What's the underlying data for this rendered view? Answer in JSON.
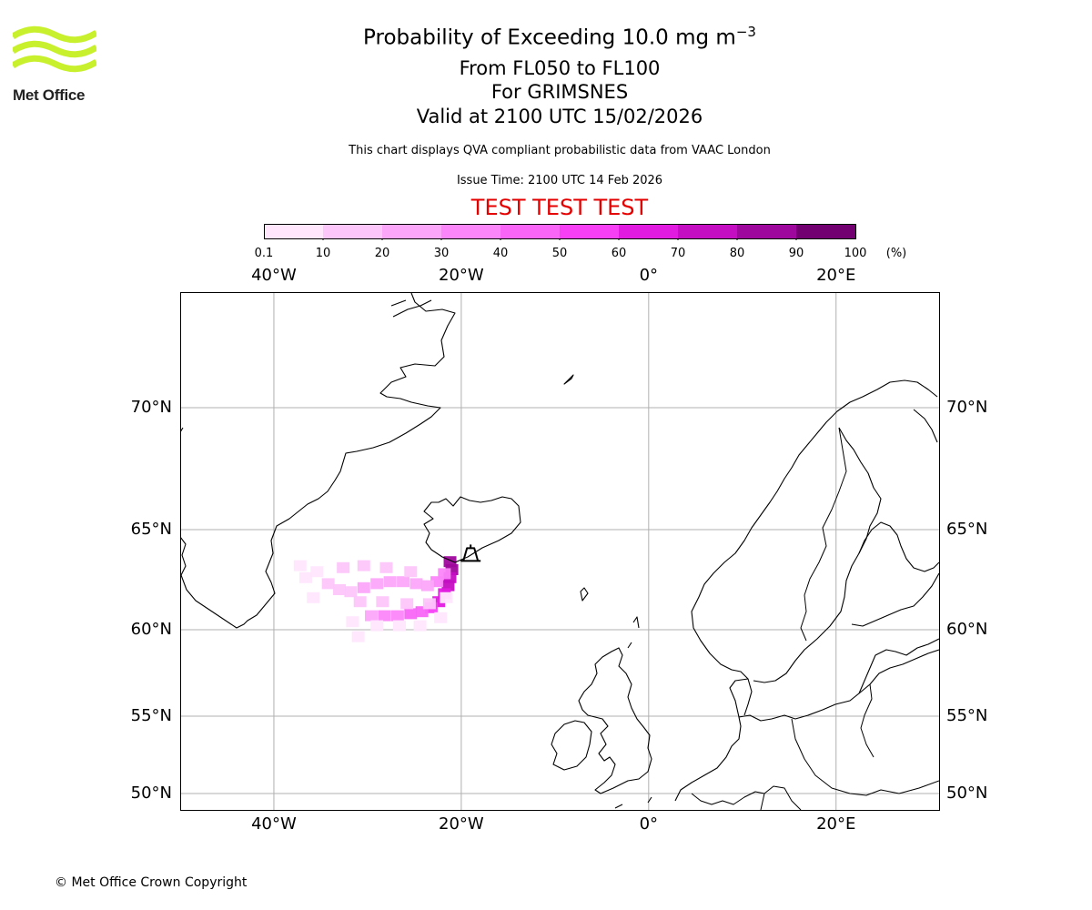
{
  "header": {
    "title_prefix": "Probability of Exceeding 10.0 mg m",
    "title_superscript": "−3",
    "levels": "From FL050 to FL100",
    "location": "For GRIMSNES",
    "valid": "Valid at 2100 UTC 15/02/2026",
    "description": "This chart displays QVA compliant probabilistic data from VAAC London",
    "issue_time": "Issue Time: 2100 UTC 14 Feb 2026",
    "test_banner": "TEST TEST TEST"
  },
  "logo": {
    "text": "Met Office",
    "color": "#c8f02c"
  },
  "colorbar": {
    "ticks": [
      "0.1",
      "10",
      "20",
      "30",
      "40",
      "50",
      "60",
      "70",
      "80",
      "90",
      "100"
    ],
    "unit": "(%)",
    "colors": [
      "#ffe6fd",
      "#fdc6fb",
      "#fca6fa",
      "#fb86f9",
      "#f966f7",
      "#f740f5",
      "#e21be0",
      "#c40ec2",
      "#9e089c",
      "#720070"
    ]
  },
  "map": {
    "lon_range": [
      -50,
      31
    ],
    "lat_range": [
      49,
      75
    ],
    "lon_ticks": [
      {
        "value": -40,
        "label": "40°W"
      },
      {
        "value": -20,
        "label": "20°W"
      },
      {
        "value": 0,
        "label": "0°"
      },
      {
        "value": 20,
        "label": "20°E"
      }
    ],
    "lat_ticks": [
      {
        "value": 70,
        "label": "70°N"
      },
      {
        "value": 65,
        "label": "65°N"
      },
      {
        "value": 60,
        "label": "60°N"
      },
      {
        "value": 55,
        "label": "55°N"
      },
      {
        "value": 50,
        "label": "50°N"
      }
    ],
    "volcano": {
      "name": "GRIMSNES",
      "lon": -19.0,
      "lat": 63.8
    },
    "plume": [
      {
        "lon": -21.2,
        "lat": 63.4,
        "p": 80
      },
      {
        "lon": -21.0,
        "lat": 63.0,
        "p": 80
      },
      {
        "lon": -21.2,
        "lat": 62.6,
        "p": 70
      },
      {
        "lon": -21.4,
        "lat": 62.2,
        "p": 70
      },
      {
        "lon": -21.8,
        "lat": 61.8,
        "p": 60
      },
      {
        "lon": -22.4,
        "lat": 61.4,
        "p": 60
      },
      {
        "lon": -23.2,
        "lat": 61.1,
        "p": 50
      },
      {
        "lon": -24.2,
        "lat": 60.9,
        "p": 40
      },
      {
        "lon": -25.4,
        "lat": 60.8,
        "p": 40
      },
      {
        "lon": -26.8,
        "lat": 60.7,
        "p": 30
      },
      {
        "lon": -28.2,
        "lat": 60.7,
        "p": 30
      },
      {
        "lon": -29.6,
        "lat": 60.7,
        "p": 20
      },
      {
        "lon": -21.8,
        "lat": 62.8,
        "p": 30
      },
      {
        "lon": -22.6,
        "lat": 62.4,
        "p": 30
      },
      {
        "lon": -23.6,
        "lat": 62.2,
        "p": 20
      },
      {
        "lon": -24.8,
        "lat": 62.3,
        "p": 20
      },
      {
        "lon": -26.2,
        "lat": 62.4,
        "p": 20
      },
      {
        "lon": -27.6,
        "lat": 62.4,
        "p": 20
      },
      {
        "lon": -29.0,
        "lat": 62.3,
        "p": 20
      },
      {
        "lon": -30.4,
        "lat": 62.1,
        "p": 20
      },
      {
        "lon": -31.8,
        "lat": 61.9,
        "p": 10
      },
      {
        "lon": -33.0,
        "lat": 62.0,
        "p": 10
      },
      {
        "lon": -34.2,
        "lat": 62.3,
        "p": 10
      },
      {
        "lon": -35.4,
        "lat": 62.9,
        "p": 0.1
      },
      {
        "lon": -32.6,
        "lat": 63.1,
        "p": 10
      },
      {
        "lon": -30.4,
        "lat": 63.2,
        "p": 10
      },
      {
        "lon": -28.0,
        "lat": 63.1,
        "p": 10
      },
      {
        "lon": -25.4,
        "lat": 62.9,
        "p": 10
      },
      {
        "lon": -23.4,
        "lat": 61.3,
        "p": 10
      },
      {
        "lon": -25.8,
        "lat": 61.3,
        "p": 10
      },
      {
        "lon": -28.4,
        "lat": 61.4,
        "p": 10
      },
      {
        "lon": -30.8,
        "lat": 61.4,
        "p": 10
      },
      {
        "lon": -31.6,
        "lat": 60.4,
        "p": 0.1
      },
      {
        "lon": -29.0,
        "lat": 60.2,
        "p": 0.1
      },
      {
        "lon": -26.6,
        "lat": 60.2,
        "p": 0.1
      },
      {
        "lon": -24.4,
        "lat": 60.2,
        "p": 0.1
      },
      {
        "lon": -22.2,
        "lat": 60.6,
        "p": 0.1
      },
      {
        "lon": -21.6,
        "lat": 61.6,
        "p": 0.1
      },
      {
        "lon": -31.0,
        "lat": 59.6,
        "p": 0.1
      },
      {
        "lon": -35.8,
        "lat": 61.6,
        "p": 0.1
      },
      {
        "lon": -36.6,
        "lat": 62.6,
        "p": 0.1
      },
      {
        "lon": -37.2,
        "lat": 63.2,
        "p": 0.1
      }
    ]
  },
  "footer": {
    "copyright": "© Met Office Crown Copyright"
  }
}
